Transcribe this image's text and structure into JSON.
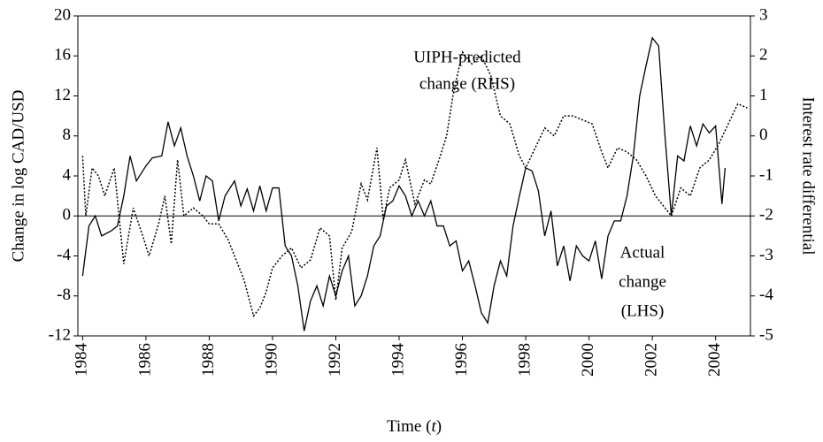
{
  "chart_data": {
    "type": "line",
    "ylabel": "Change in log CAD/USD",
    "y2label": "Interest rate differential",
    "xlabel_parts": [
      "Time (",
      "t",
      ")"
    ],
    "annotations": [
      [
        "UIPH-predicted",
        "change (RHS)"
      ],
      [
        "Actual",
        "change",
        "(LHS)"
      ]
    ],
    "xlim": [
      1983.85,
      2005.1
    ],
    "xticks": [
      1984,
      1986,
      1988,
      1990,
      1992,
      1994,
      1996,
      1998,
      2000,
      2002,
      2004
    ],
    "ylim": [
      -12,
      20
    ],
    "yticks": [
      -12,
      -8,
      -4,
      0,
      4,
      8,
      12,
      16,
      20
    ],
    "y2lim": [
      -5,
      3
    ],
    "y2ticks": [
      -5,
      -4,
      -3,
      -2,
      -1,
      0,
      1,
      2,
      3
    ],
    "series": [
      {
        "color": "#000000",
        "style": "solid",
        "axis": "y",
        "x": [
          1984.0,
          1984.2,
          1984.4,
          1984.6,
          1984.9,
          1985.1,
          1985.3,
          1985.5,
          1985.7,
          1986.0,
          1986.2,
          1986.5,
          1986.7,
          1986.9,
          1987.1,
          1987.3,
          1987.5,
          1987.7,
          1987.9,
          1988.1,
          1988.3,
          1988.5,
          1988.8,
          1989.0,
          1989.2,
          1989.4,
          1989.6,
          1989.8,
          1990.0,
          1990.2,
          1990.4,
          1990.6,
          1990.8,
          1991.0,
          1991.2,
          1991.4,
          1991.6,
          1991.8,
          1992.0,
          1992.2,
          1992.4,
          1992.6,
          1992.8,
          1993.0,
          1993.2,
          1993.4,
          1993.6,
          1993.8,
          1994.0,
          1994.2,
          1994.4,
          1994.6,
          1994.8,
          1995.0,
          1995.2,
          1995.4,
          1995.6,
          1995.8,
          1996.0,
          1996.2,
          1996.4,
          1996.6,
          1996.8,
          1997.0,
          1997.2,
          1997.4,
          1997.6,
          1997.8,
          1998.0,
          1998.2,
          1998.4,
          1998.6,
          1998.8,
          1999.0,
          1999.2,
          1999.4,
          1999.6,
          1999.8,
          2000.0,
          2000.2,
          2000.4,
          2000.6,
          2000.8,
          2001.0,
          2001.2,
          2001.4,
          2001.6,
          2001.8,
          2002.0,
          2002.2,
          2002.4,
          2002.6,
          2002.8,
          2003.0,
          2003.2,
          2003.4,
          2003.6,
          2003.8,
          2004.0,
          2004.2,
          2004.3
        ],
        "values": [
          -6,
          -1,
          0,
          -2,
          -1.5,
          -1,
          2,
          6,
          3.5,
          5,
          5.8,
          6,
          9.4,
          7,
          8.8,
          6,
          4,
          1.5,
          4,
          3.5,
          -0.5,
          2,
          3.5,
          1,
          2.7,
          0.5,
          3,
          0.5,
          2.8,
          2.8,
          -3,
          -4,
          -7,
          -11.5,
          -8.5,
          -7,
          -9,
          -6,
          -8,
          -5.5,
          -4,
          -9,
          -8,
          -6,
          -3,
          -2,
          1,
          1.5,
          3,
          2,
          0,
          1.5,
          0,
          1.5,
          -1,
          -1,
          -3,
          -2.5,
          -5.5,
          -4.5,
          -7,
          -9.7,
          -10.7,
          -7,
          -4.5,
          -6,
          -1,
          2,
          4.8,
          4.5,
          2.5,
          -2,
          0.5,
          -5,
          -3,
          -6.5,
          -3,
          -4,
          -4.5,
          -2.5,
          -6.3,
          -2,
          -0.5,
          -0.5,
          2,
          6,
          12,
          15,
          17.8,
          17,
          8,
          0,
          6,
          5.5,
          9,
          7,
          9.2,
          8.3,
          9,
          1.2,
          4.8
        ]
      },
      {
        "color": "#000000",
        "style": "dotted",
        "axis": "y2",
        "x": [
          1984.0,
          1984.1,
          1984.3,
          1984.5,
          1984.7,
          1985.0,
          1985.3,
          1985.6,
          1985.9,
          1986.1,
          1986.4,
          1986.6,
          1986.8,
          1987.0,
          1987.2,
          1987.5,
          1987.8,
          1988.0,
          1988.3,
          1988.6,
          1988.9,
          1989.1,
          1989.4,
          1989.6,
          1989.8,
          1990.0,
          1990.3,
          1990.6,
          1990.9,
          1991.2,
          1991.5,
          1991.8,
          1992.0,
          1992.2,
          1992.5,
          1992.8,
          1993.0,
          1993.3,
          1993.5,
          1993.7,
          1994.0,
          1994.2,
          1994.5,
          1994.8,
          1995.0,
          1995.3,
          1995.5,
          1995.7,
          1996.0,
          1996.3,
          1996.6,
          1996.9,
          1997.2,
          1997.5,
          1997.8,
          1998.0,
          1998.3,
          1998.6,
          1998.9,
          1999.2,
          1999.5,
          1999.8,
          2000.1,
          2000.4,
          2000.6,
          2000.9,
          2001.2,
          2001.5,
          2001.8,
          2002.1,
          2002.4,
          2002.6,
          2002.9,
          2003.2,
          2003.5,
          2003.8,
          2004.1,
          2004.4,
          2004.7,
          2005.0
        ],
        "values": [
          -0.5,
          -2,
          -0.8,
          -1,
          -1.5,
          -0.8,
          -3.2,
          -1.8,
          -2.5,
          -3,
          -2.2,
          -1.5,
          -2.7,
          -0.6,
          -2,
          -1.8,
          -2,
          -2.2,
          -2.2,
          -2.6,
          -3.2,
          -3.6,
          -4.5,
          -4.3,
          -3.9,
          -3.3,
          -3,
          -2.8,
          -3.3,
          -3.1,
          -2.3,
          -2.5,
          -4.1,
          -2.8,
          -2.4,
          -1.2,
          -1.6,
          -0.3,
          -2.1,
          -1.3,
          -1.1,
          -0.6,
          -1.7,
          -1.1,
          -1.2,
          -0.5,
          0,
          1,
          2.1,
          1.8,
          2,
          1.5,
          0.5,
          0.3,
          -0.5,
          -0.8,
          -0.3,
          0.2,
          0,
          0.5,
          0.5,
          0.4,
          0.3,
          -0.4,
          -0.8,
          -0.3,
          -0.4,
          -0.6,
          -1,
          -1.5,
          -1.8,
          -2,
          -1.3,
          -1.5,
          -0.8,
          -0.6,
          -0.2,
          0.3,
          0.8,
          0.7
        ]
      }
    ]
  }
}
